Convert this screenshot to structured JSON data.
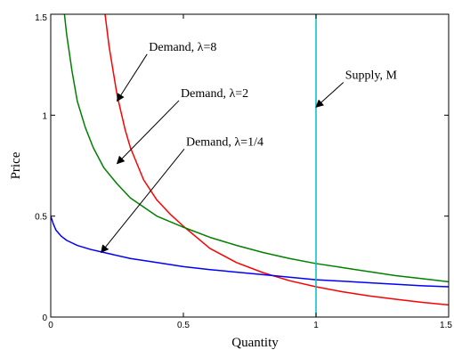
{
  "chart_data": {
    "type": "line",
    "title": "",
    "xlabel": "Quantity",
    "ylabel": "Price",
    "xlim": [
      0,
      1.5
    ],
    "ylim": [
      0,
      1.5
    ],
    "grid": false,
    "x_ticks": [
      "0",
      "0.5",
      "1",
      "1.5"
    ],
    "y_ticks": [
      "0",
      "0.5",
      "1",
      "1.5"
    ],
    "series": [
      {
        "color": "#ff0000",
        "x": [
          0.2,
          0.22,
          0.25,
          0.28,
          0.3,
          0.35,
          0.4,
          0.45,
          0.5,
          0.6,
          0.7,
          0.8,
          0.9,
          1.0,
          1.1,
          1.2,
          1.3,
          1.4,
          1.5
        ],
        "y": [
          1.55,
          1.34,
          1.1,
          0.93,
          0.84,
          0.68,
          0.58,
          0.51,
          0.45,
          0.34,
          0.27,
          0.22,
          0.18,
          0.15,
          0.125,
          0.105,
          0.088,
          0.073,
          0.06
        ]
      },
      {
        "color": "#008000",
        "x": [
          0.05,
          0.06,
          0.08,
          0.1,
          0.13,
          0.16,
          0.2,
          0.25,
          0.3,
          0.4,
          0.5,
          0.6,
          0.7,
          0.8,
          0.9,
          1.0,
          1.1,
          1.2,
          1.3,
          1.4,
          1.5
        ],
        "y": [
          1.52,
          1.4,
          1.22,
          1.07,
          0.94,
          0.84,
          0.74,
          0.66,
          0.59,
          0.5,
          0.445,
          0.395,
          0.355,
          0.32,
          0.29,
          0.265,
          0.245,
          0.225,
          0.205,
          0.19,
          0.175
        ]
      },
      {
        "color": "#0000ff",
        "x": [
          0.0,
          0.005,
          0.01,
          0.02,
          0.04,
          0.06,
          0.1,
          0.15,
          0.2,
          0.3,
          0.4,
          0.5,
          0.6,
          0.8,
          1.0,
          1.2,
          1.4,
          1.5
        ],
        "y": [
          0.5,
          0.48,
          0.46,
          0.43,
          0.4,
          0.38,
          0.355,
          0.335,
          0.32,
          0.29,
          0.27,
          0.25,
          0.235,
          0.21,
          0.185,
          0.17,
          0.155,
          0.15
        ]
      },
      {
        "color": "#00bfbf",
        "x": [
          1.0,
          1.0
        ],
        "y": [
          0.0,
          1.5
        ]
      }
    ],
    "annotations": [
      {
        "text": "Demand, λ=8",
        "text_at": [
          0.37,
          1.32
        ],
        "arrow_to": [
          0.25,
          1.07
        ]
      },
      {
        "text": "Demand, λ=2",
        "text_at": [
          0.49,
          1.09
        ],
        "arrow_to": [
          0.25,
          0.76
        ]
      },
      {
        "text": "Demand, λ=1/4",
        "text_at": [
          0.51,
          0.85
        ],
        "arrow_to": [
          0.19,
          0.32
        ]
      },
      {
        "text": "Supply, M",
        "text_at": [
          1.11,
          1.18
        ],
        "arrow_to": [
          1.0,
          1.04
        ]
      }
    ]
  }
}
